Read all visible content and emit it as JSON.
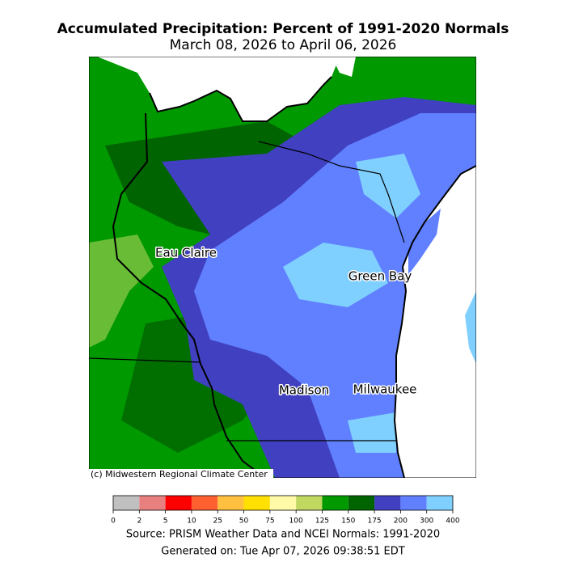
{
  "header": {
    "title": "Accumulated Precipitation: Percent of 1991-2020 Normals",
    "subtitle": "March 08, 2026 to April 06, 2026"
  },
  "map": {
    "cities": [
      {
        "label": "Eau Claire"
      },
      {
        "label": "Green Bay"
      },
      {
        "label": "Madison"
      },
      {
        "label": "Milwaukee"
      }
    ],
    "credit": "(c) Midwestern Regional Climate Center"
  },
  "legend": {
    "bins": [
      0,
      2,
      5,
      10,
      25,
      50,
      75,
      100,
      125,
      150,
      175,
      200,
      300,
      400
    ],
    "colors": [
      "#c0c0c0",
      "#e88080",
      "#ff0000",
      "#ff6030",
      "#ffc040",
      "#ffe000",
      "#fffaa8",
      "#c0d860",
      "#009900",
      "#006400",
      "#4040c0",
      "#6080ff",
      "#80d0ff"
    ]
  },
  "footer": {
    "source": "Source: PRISM Weather Data and NCEI Normals: 1991-2020",
    "generated": "Generated on: Tue Apr 07, 2026 09:38:51 EDT"
  }
}
